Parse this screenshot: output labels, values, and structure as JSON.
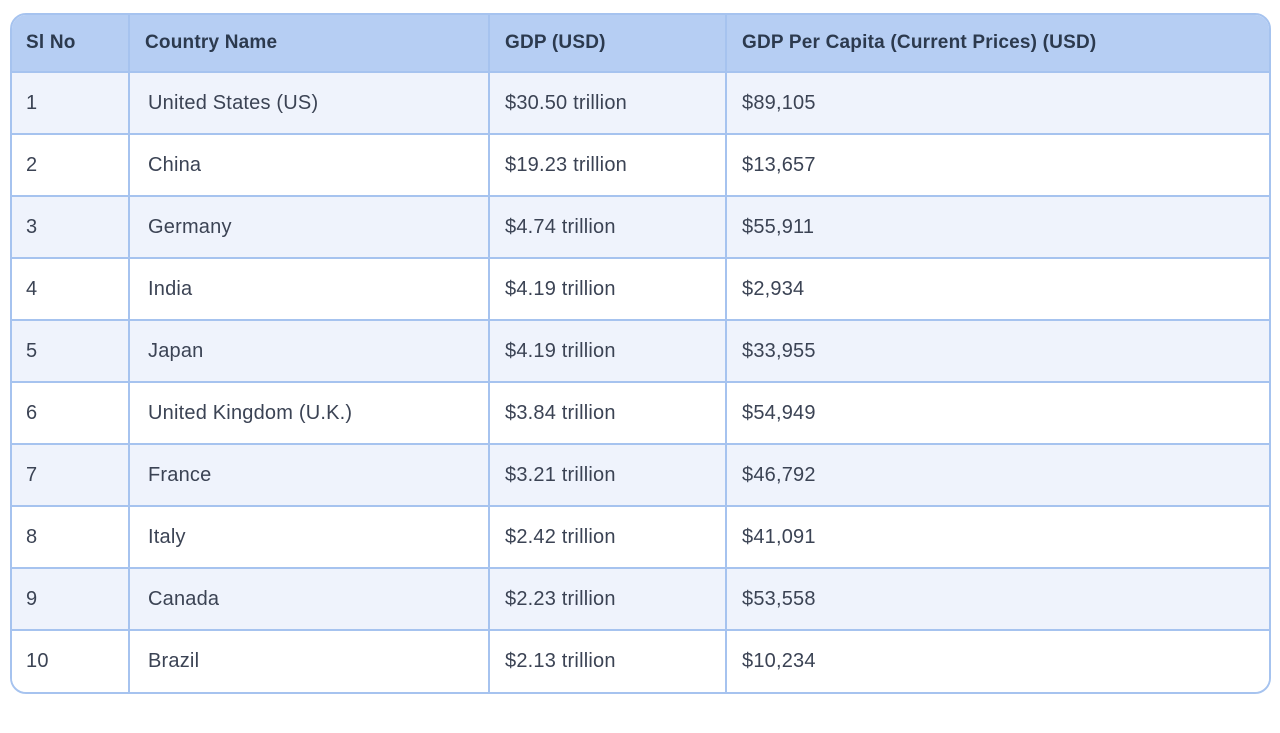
{
  "chart_data": {
    "type": "table",
    "columns": [
      "Sl No",
      "Country Name",
      "GDP (USD)",
      "GDP Per Capita (Current Prices) (USD)"
    ],
    "rows": [
      [
        "1",
        "United States (US)",
        "$30.50 trillion",
        "$89,105"
      ],
      [
        "2",
        "China",
        "$19.23 trillion",
        "$13,657"
      ],
      [
        "3",
        "Germany",
        "$4.74 trillion",
        "$55,911"
      ],
      [
        "4",
        "India",
        "$4.19 trillion",
        "$2,934"
      ],
      [
        "5",
        "Japan",
        "$4.19 trillion",
        "$33,955"
      ],
      [
        "6",
        "United Kingdom (U.K.)",
        "$3.84 trillion",
        "$54,949"
      ],
      [
        "7",
        "France",
        "$3.21 trillion",
        "$46,792"
      ],
      [
        "8",
        "Italy",
        "$2.42 trillion",
        "$41,091"
      ],
      [
        "9",
        "Canada",
        "$2.23 trillion",
        "$53,558"
      ],
      [
        "10",
        "Brazil",
        "$2.13 trillion",
        "$10,234"
      ]
    ],
    "layout_hints": {
      "striped_rows": "odd rows tinted light blue, even rows white",
      "grid": "on",
      "rounded_corners": true
    }
  },
  "colors": {
    "header_bg": "#b6cef3",
    "stripe_bg": "#eff3fc",
    "row_bg": "#ffffff",
    "border": "#a6c3ef",
    "header_text": "#2c3a4e",
    "body_text": "#3b4354"
  }
}
